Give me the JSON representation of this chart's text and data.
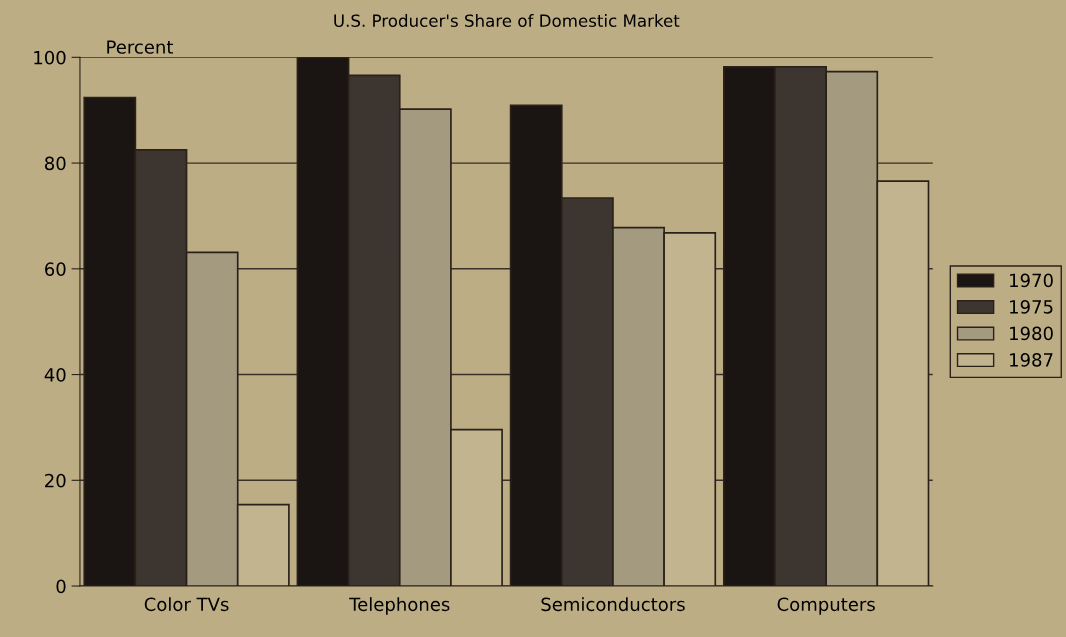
{
  "chart_data": {
    "type": "bar",
    "title": "U.S. Producer's Share of Domestic Market",
    "ylabel": "Percent",
    "categories": [
      "Color TVs",
      "Telephones",
      "Semiconductors",
      "Computers"
    ],
    "series": [
      {
        "name": "1970",
        "color": "#1a1512",
        "values": [
          92.4,
          100,
          90.9,
          98.2
        ]
      },
      {
        "name": "1975",
        "color": "#3d3630",
        "values": [
          82.5,
          96.6,
          73.4,
          98.2
        ]
      },
      {
        "name": "1980",
        "color": "#a39a80",
        "values": [
          63.1,
          90.2,
          67.8,
          97.3
        ]
      },
      {
        "name": "1987",
        "color": "#c2b48f",
        "values": [
          15.4,
          29.6,
          66.8,
          76.6
        ]
      }
    ],
    "ylim": [
      0,
      100
    ],
    "yticks": [
      0,
      20,
      40,
      60,
      80,
      100
    ],
    "grid": "y",
    "legend": "right"
  }
}
